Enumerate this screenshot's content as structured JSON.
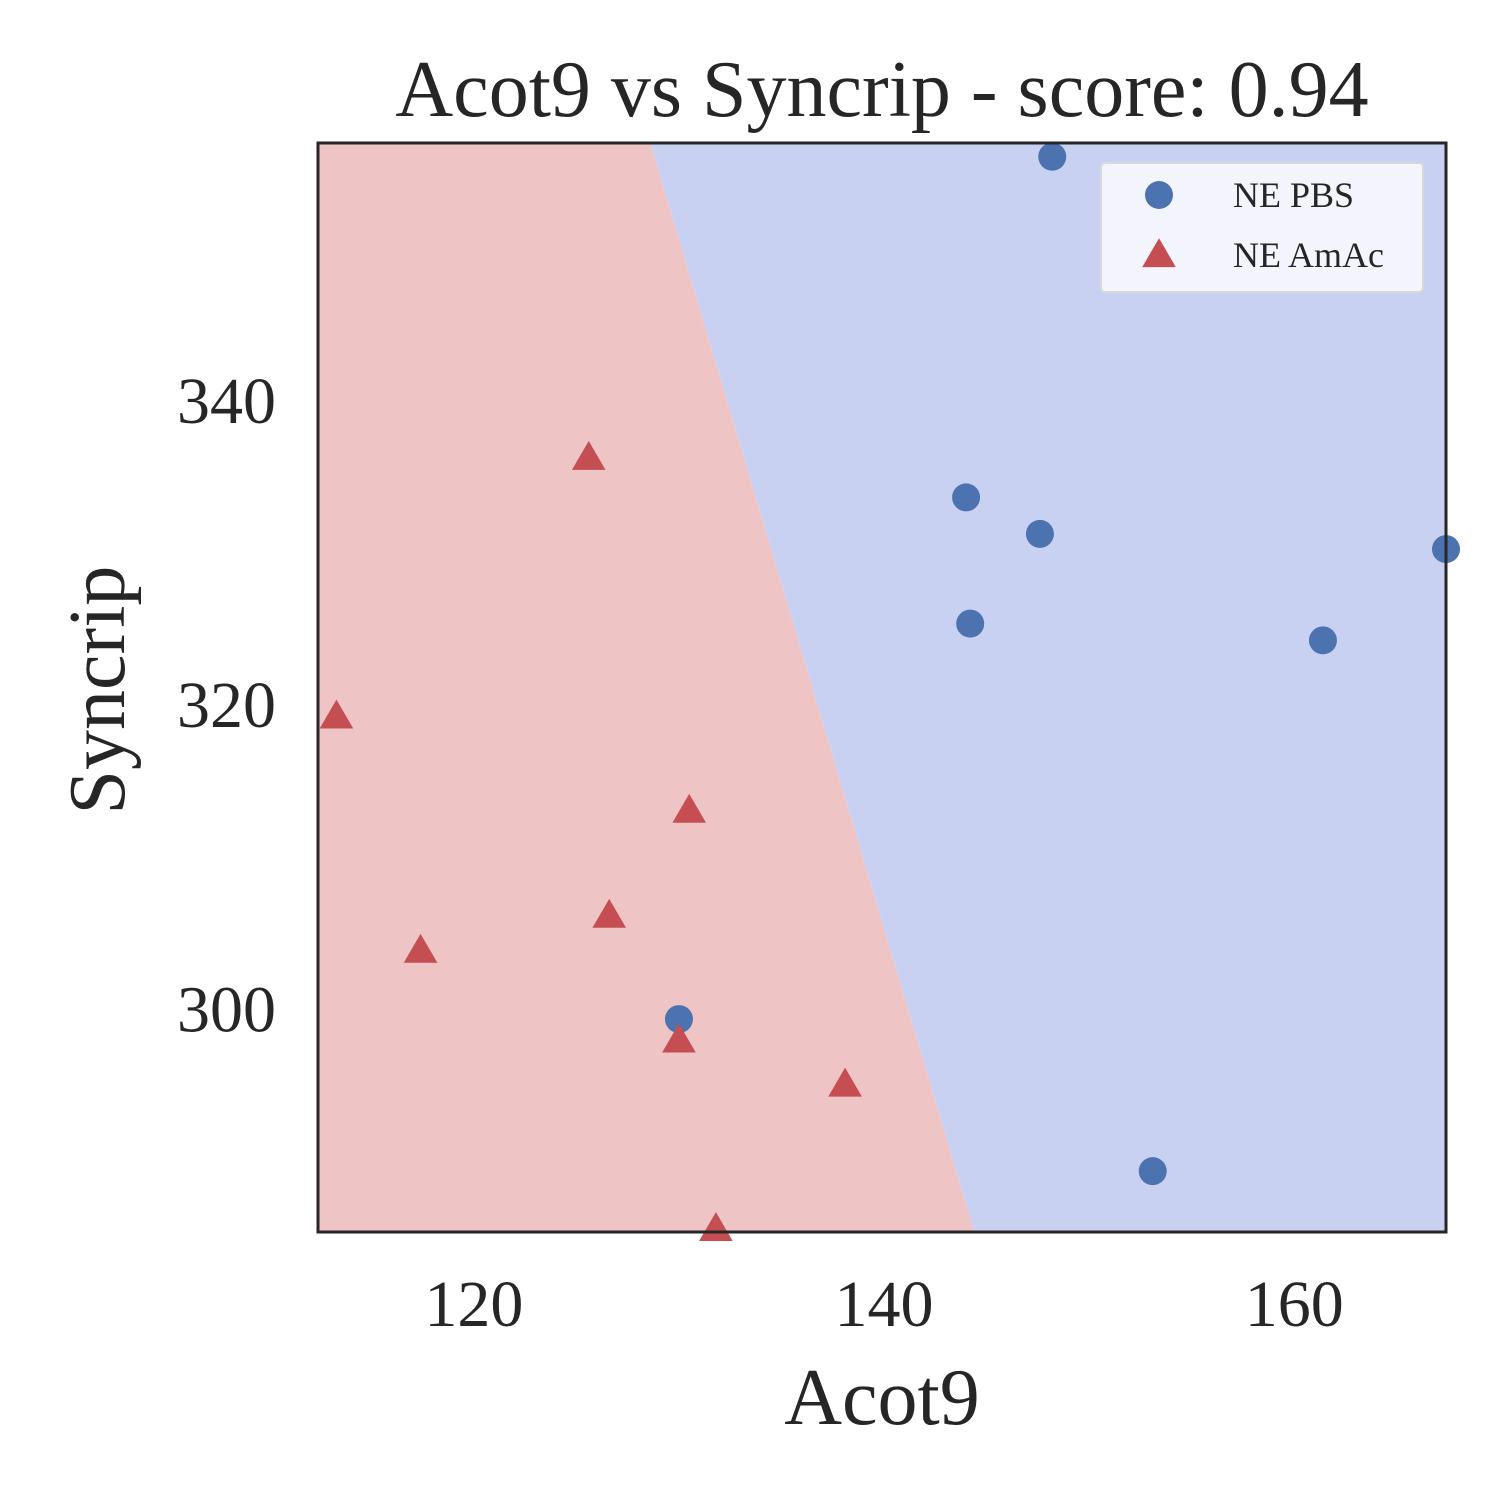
{
  "chart_data": {
    "type": "scatter",
    "title": "Acot9 vs Syncrip - score: 0.94",
    "xlabel": "Acot9",
    "ylabel": "Syncrip",
    "xlim": [
      112.4,
      167.4
    ],
    "ylim": [
      285.3,
      356.9
    ],
    "x_ticks": [
      120,
      140,
      160
    ],
    "y_ticks": [
      300,
      320,
      340
    ],
    "grid": false,
    "legend_position": "top-right",
    "decision_regions": {
      "boundary": [
        [
          128.6,
          356.9
        ],
        [
          144.4,
          285.3
        ]
      ],
      "left_class": "NE AmAc",
      "right_class": "NE PBS",
      "left_color": "#eec4c5",
      "right_color": "#c9d1f2"
    },
    "series": [
      {
        "name": "NE PBS",
        "marker": "circle",
        "color": "#4c72b0",
        "points": [
          [
            148.2,
            356.0
          ],
          [
            144.0,
            333.6
          ],
          [
            147.6,
            331.2
          ],
          [
            167.4,
            330.2
          ],
          [
            144.2,
            325.3
          ],
          [
            161.4,
            324.2
          ],
          [
            130.0,
            299.3
          ],
          [
            153.1,
            289.3
          ]
        ]
      },
      {
        "name": "NE AmAc",
        "marker": "triangle",
        "color": "#c44e52",
        "points": [
          [
            125.6,
            336.2
          ],
          [
            113.3,
            319.2
          ],
          [
            130.5,
            313.0
          ],
          [
            126.6,
            306.1
          ],
          [
            117.4,
            303.8
          ],
          [
            130.0,
            297.9
          ],
          [
            138.1,
            295.0
          ],
          [
            131.8,
            285.5
          ]
        ]
      }
    ]
  }
}
